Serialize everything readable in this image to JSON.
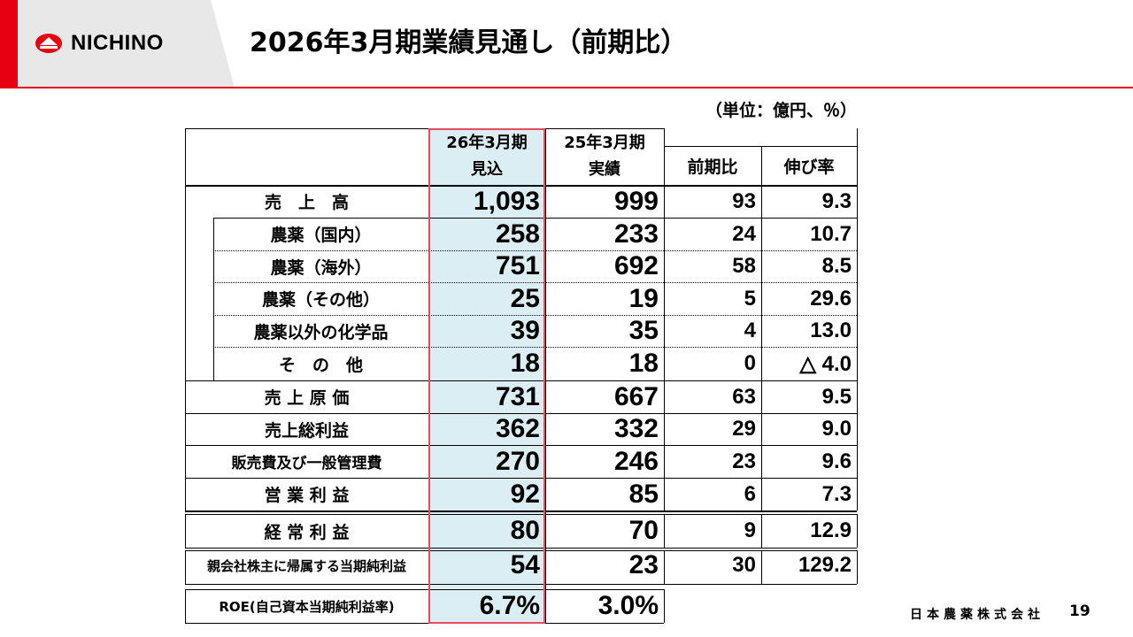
{
  "header": {
    "brand": "NICHINO",
    "title": "2026年3月期業績見通し（前期比）"
  },
  "unit": "（単位：億円、％）",
  "table": {
    "col_headers": {
      "forecast_line1": "26年3月期",
      "forecast_line2": "見込",
      "actual_line1": "25年3月期",
      "actual_line2": "実績",
      "yoy": "前期比",
      "growth": "伸び率"
    },
    "rows": [
      {
        "label": "売　上　高",
        "forecast": "1,093",
        "actual": "999",
        "yoy": "93",
        "growth": "9.3"
      },
      {
        "label": "農薬（国内）",
        "forecast": "258",
        "actual": "233",
        "yoy": "24",
        "growth": "10.7"
      },
      {
        "label": "農薬（海外）",
        "forecast": "751",
        "actual": "692",
        "yoy": "58",
        "growth": "8.5"
      },
      {
        "label": "農薬（その他）",
        "forecast": "25",
        "actual": "19",
        "yoy": "5",
        "growth": "29.6"
      },
      {
        "label": "農薬以外の化学品",
        "forecast": "39",
        "actual": "35",
        "yoy": "4",
        "growth": "13.0"
      },
      {
        "label": "そ　の　他",
        "forecast": "18",
        "actual": "18",
        "yoy": "0",
        "growth": "△ 4.0"
      },
      {
        "label": "売 上 原 価",
        "forecast": "731",
        "actual": "667",
        "yoy": "63",
        "growth": "9.5"
      },
      {
        "label": "売上総利益",
        "forecast": "362",
        "actual": "332",
        "yoy": "29",
        "growth": "9.0"
      },
      {
        "label": "販売費及び一般管理費",
        "forecast": "270",
        "actual": "246",
        "yoy": "23",
        "growth": "9.6"
      },
      {
        "label": "営 業 利 益",
        "forecast": "92",
        "actual": "85",
        "yoy": "6",
        "growth": "7.3"
      },
      {
        "label": "経 常 利 益",
        "forecast": "80",
        "actual": "70",
        "yoy": "9",
        "growth": "12.9"
      },
      {
        "label": "親会社株主に帰属する当期純利益",
        "forecast": "54",
        "actual": "23",
        "yoy": "30",
        "growth": "129.2"
      },
      {
        "label": "ROE(自己資本当期純利益率)",
        "forecast": "6.7%",
        "actual": "3.0%"
      }
    ]
  },
  "footer": {
    "company": "日本農薬株式会社",
    "page": "19"
  },
  "colors": {
    "accent": "#e60012",
    "highlight": "#daeef3",
    "highlight_border": "#e84a5f"
  }
}
